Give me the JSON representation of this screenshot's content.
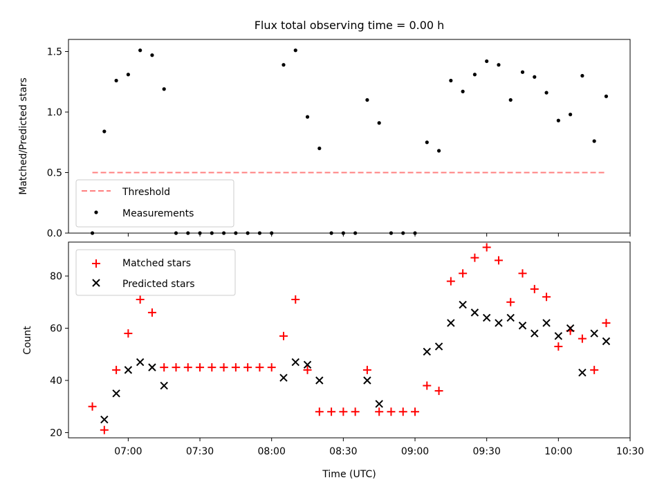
{
  "colors": {
    "threshold": "#ff7f7f",
    "measurement": "#000000",
    "matched": "#ff0000",
    "predicted": "#000000"
  },
  "chart_data": [
    {
      "type": "scatter",
      "title": "Flux total observing time = 0.00 h",
      "xlabel": "",
      "ylabel": "Matched/Predicted stars",
      "ylim": [
        0,
        1.6
      ],
      "yticks": [
        0.0,
        0.5,
        1.0,
        1.5
      ],
      "ytick_labels": [
        "0.0",
        "0.5",
        "1.0",
        "1.5"
      ],
      "legend_position": "lower-left",
      "threshold": {
        "name": "Threshold",
        "y": 0.5,
        "x_start": "06:45",
        "x_end": "10:20",
        "style": "dashed"
      },
      "series": [
        {
          "name": "Measurements",
          "x": [
            "06:45",
            "06:50",
            "06:55",
            "07:00",
            "07:05",
            "07:10",
            "07:15",
            "07:20",
            "07:25",
            "07:30",
            "07:35",
            "07:40",
            "07:45",
            "07:50",
            "07:55",
            "08:00",
            "08:05",
            "08:10",
            "08:15",
            "08:20",
            "08:25",
            "08:30",
            "08:35",
            "08:40",
            "08:45",
            "08:50",
            "08:55",
            "09:00",
            "09:05",
            "09:10",
            "09:15",
            "09:20",
            "09:25",
            "09:30",
            "09:35",
            "09:40",
            "09:45",
            "09:50",
            "09:55",
            "10:00",
            "10:05",
            "10:10",
            "10:15",
            "10:20"
          ],
          "y": [
            0,
            0.84,
            1.26,
            1.31,
            1.51,
            1.47,
            1.19,
            0,
            0,
            0,
            0,
            0,
            0,
            0,
            0,
            0,
            1.39,
            1.51,
            0.96,
            0.7,
            0,
            0,
            0,
            1.1,
            0.91,
            0,
            0,
            0,
            0.75,
            0.68,
            1.26,
            1.17,
            1.31,
            1.42,
            1.39,
            1.1,
            1.33,
            1.29,
            1.16,
            0.93,
            0.98,
            1.3,
            0.76,
            1.13
          ]
        }
      ]
    },
    {
      "type": "scatter",
      "title": "",
      "xlabel": "Time (UTC)",
      "ylabel": "Count",
      "xlim": [
        "06:35",
        "10:30"
      ],
      "xtick_labels": [
        "07:00",
        "07:30",
        "08:00",
        "08:30",
        "09:00",
        "09:30",
        "10:00",
        "10:30"
      ],
      "ylim": [
        18,
        93
      ],
      "yticks": [
        20,
        40,
        60,
        80
      ],
      "ytick_labels": [
        "20",
        "40",
        "60",
        "80"
      ],
      "legend_position": "top-left",
      "series": [
        {
          "name": "Matched stars",
          "marker": "+",
          "x": [
            "06:45",
            "06:50",
            "06:55",
            "07:00",
            "07:05",
            "07:10",
            "07:15",
            "07:20",
            "07:25",
            "07:30",
            "07:35",
            "07:40",
            "07:45",
            "07:50",
            "07:55",
            "08:00",
            "08:05",
            "08:10",
            "08:15",
            "08:20",
            "08:25",
            "08:30",
            "08:35",
            "08:40",
            "08:45",
            "08:50",
            "08:55",
            "09:00",
            "09:05",
            "09:10",
            "09:15",
            "09:20",
            "09:25",
            "09:30",
            "09:35",
            "09:40",
            "09:45",
            "09:50",
            "09:55",
            "10:00",
            "10:05",
            "10:10",
            "10:15",
            "10:20"
          ],
          "y": [
            30,
            21,
            44,
            58,
            71,
            66,
            45,
            45,
            45,
            45,
            45,
            45,
            45,
            45,
            45,
            45,
            57,
            71,
            44,
            28,
            28,
            28,
            28,
            44,
            28,
            28,
            28,
            28,
            38,
            36,
            78,
            81,
            87,
            91,
            86,
            70,
            81,
            75,
            72,
            53,
            59,
            56,
            44,
            62
          ]
        },
        {
          "name": "Predicted stars",
          "marker": "x",
          "x": [
            "06:50",
            "06:55",
            "07:00",
            "07:05",
            "07:10",
            "07:15",
            "08:05",
            "08:10",
            "08:15",
            "08:20",
            "08:40",
            "08:45",
            "09:05",
            "09:10",
            "09:15",
            "09:20",
            "09:25",
            "09:30",
            "09:35",
            "09:40",
            "09:45",
            "09:50",
            "09:55",
            "10:00",
            "10:05",
            "10:10",
            "10:15",
            "10:20"
          ],
          "y": [
            25,
            35,
            44,
            47,
            45,
            38,
            41,
            47,
            46,
            40,
            40,
            31,
            51,
            53,
            62,
            69,
            66,
            64,
            62,
            64,
            61,
            58,
            62,
            57,
            60,
            43,
            58,
            55
          ]
        }
      ]
    }
  ]
}
